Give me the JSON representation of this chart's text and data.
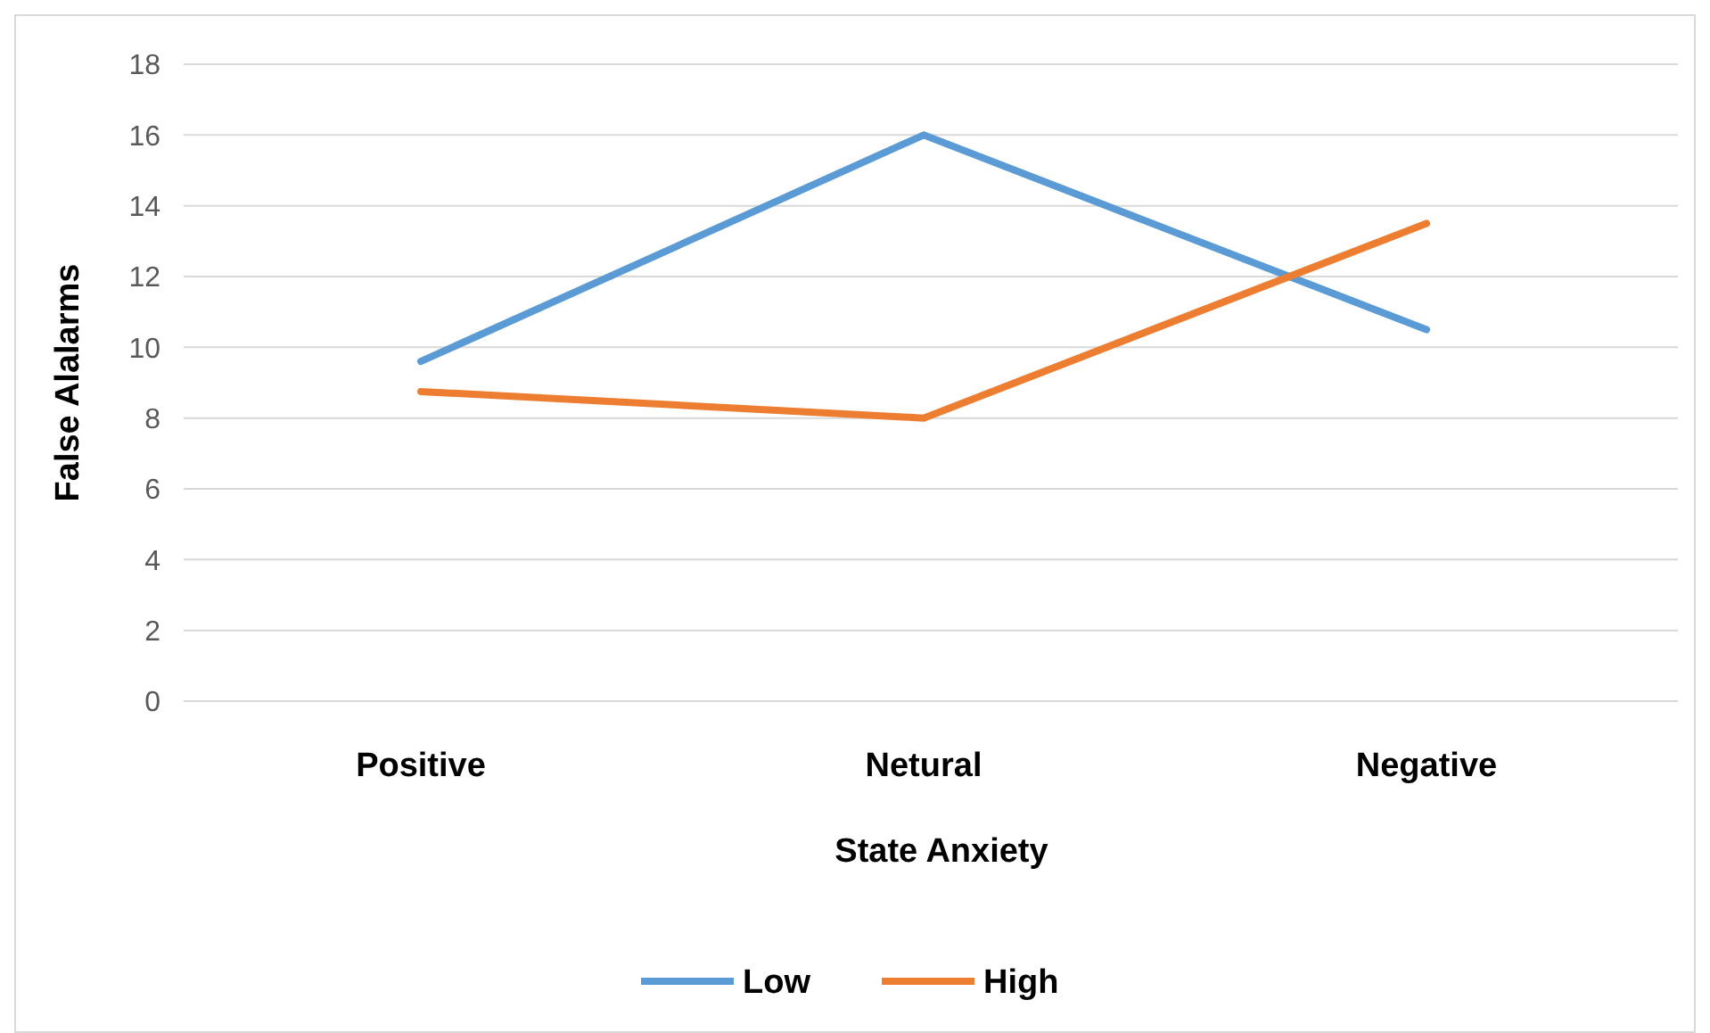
{
  "chart_data": {
    "type": "line",
    "xlabel": "State Anxiety",
    "ylabel": "False Alalarms",
    "categories": [
      "Positive",
      "Netural",
      "Negative"
    ],
    "series": [
      {
        "name": "Low",
        "color": "#5b9bd5",
        "values": [
          9.6,
          16,
          10.5
        ]
      },
      {
        "name": "High",
        "color": "#ed7d31",
        "values": [
          8.75,
          8.0,
          13.5
        ]
      }
    ],
    "ylim": [
      0,
      18
    ],
    "yticks": [
      0,
      2,
      4,
      6,
      8,
      10,
      12,
      14,
      16,
      18
    ],
    "grid": "y",
    "legend": "bottom",
    "marker": "none",
    "line_style": "solid"
  }
}
